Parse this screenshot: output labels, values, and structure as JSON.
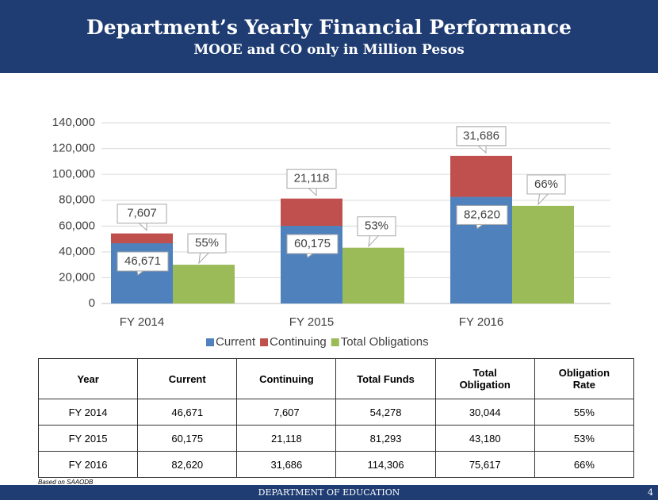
{
  "header": {
    "title": "Department’s Yearly Financial Performance",
    "subtitle": "MOOE and CO only in Million Pesos"
  },
  "chart_data": {
    "type": "stacked_bar",
    "categories": [
      "FY 2014",
      "FY 2015",
      "FY 2016"
    ],
    "series": [
      {
        "name": "Current",
        "color": "#4f81bd",
        "values": [
          46671,
          60175,
          82620
        ],
        "value_labels": [
          "46,671",
          "60,175",
          "82,620"
        ],
        "stack": "funds"
      },
      {
        "name": "Continuing",
        "color": "#c0504d",
        "values": [
          7607,
          21118,
          31686
        ],
        "value_labels": [
          "7,607",
          "21,118",
          "31,686"
        ],
        "stack": "funds"
      },
      {
        "name": "Total Obligations",
        "color": "#9bbb59",
        "values": [
          30044,
          43180,
          75617
        ],
        "callouts": [
          "55%",
          "53%",
          "66%"
        ],
        "stack": "obligations"
      }
    ],
    "ylim": [
      0,
      140000
    ],
    "yticks": [
      0,
      {
        "value": 20000,
        "label": "20,000"
      },
      {
        "value": 40000,
        "label": "40,000"
      },
      {
        "value": 60000,
        "label": "60,000"
      },
      {
        "value": 80000,
        "label": "80,000"
      },
      {
        "value": 100000,
        "label": "100,000"
      },
      {
        "value": 120000,
        "label": "120,000"
      },
      {
        "value": 140000,
        "label": "140,000"
      }
    ],
    "grid": true,
    "legend": "bottom"
  },
  "table": {
    "header": [
      "Year",
      "Current",
      "Continuing",
      "Total Funds",
      "Total Obligation",
      "Obligation Rate"
    ],
    "rows": [
      [
        "FY 2014",
        "46,671",
        "7,607",
        "54,278",
        "30,044",
        "55%"
      ],
      [
        "FY 2015",
        "60,175",
        "21,118",
        "81,293",
        "43,180",
        "53%"
      ],
      [
        "FY 2016",
        "82,620",
        "31,686",
        "114,306",
        "75,617",
        "66%"
      ]
    ]
  },
  "footnote": "Based on SAAODB",
  "footer": {
    "org": "DEPARTMENT OF EDUCATION",
    "page": "4"
  }
}
